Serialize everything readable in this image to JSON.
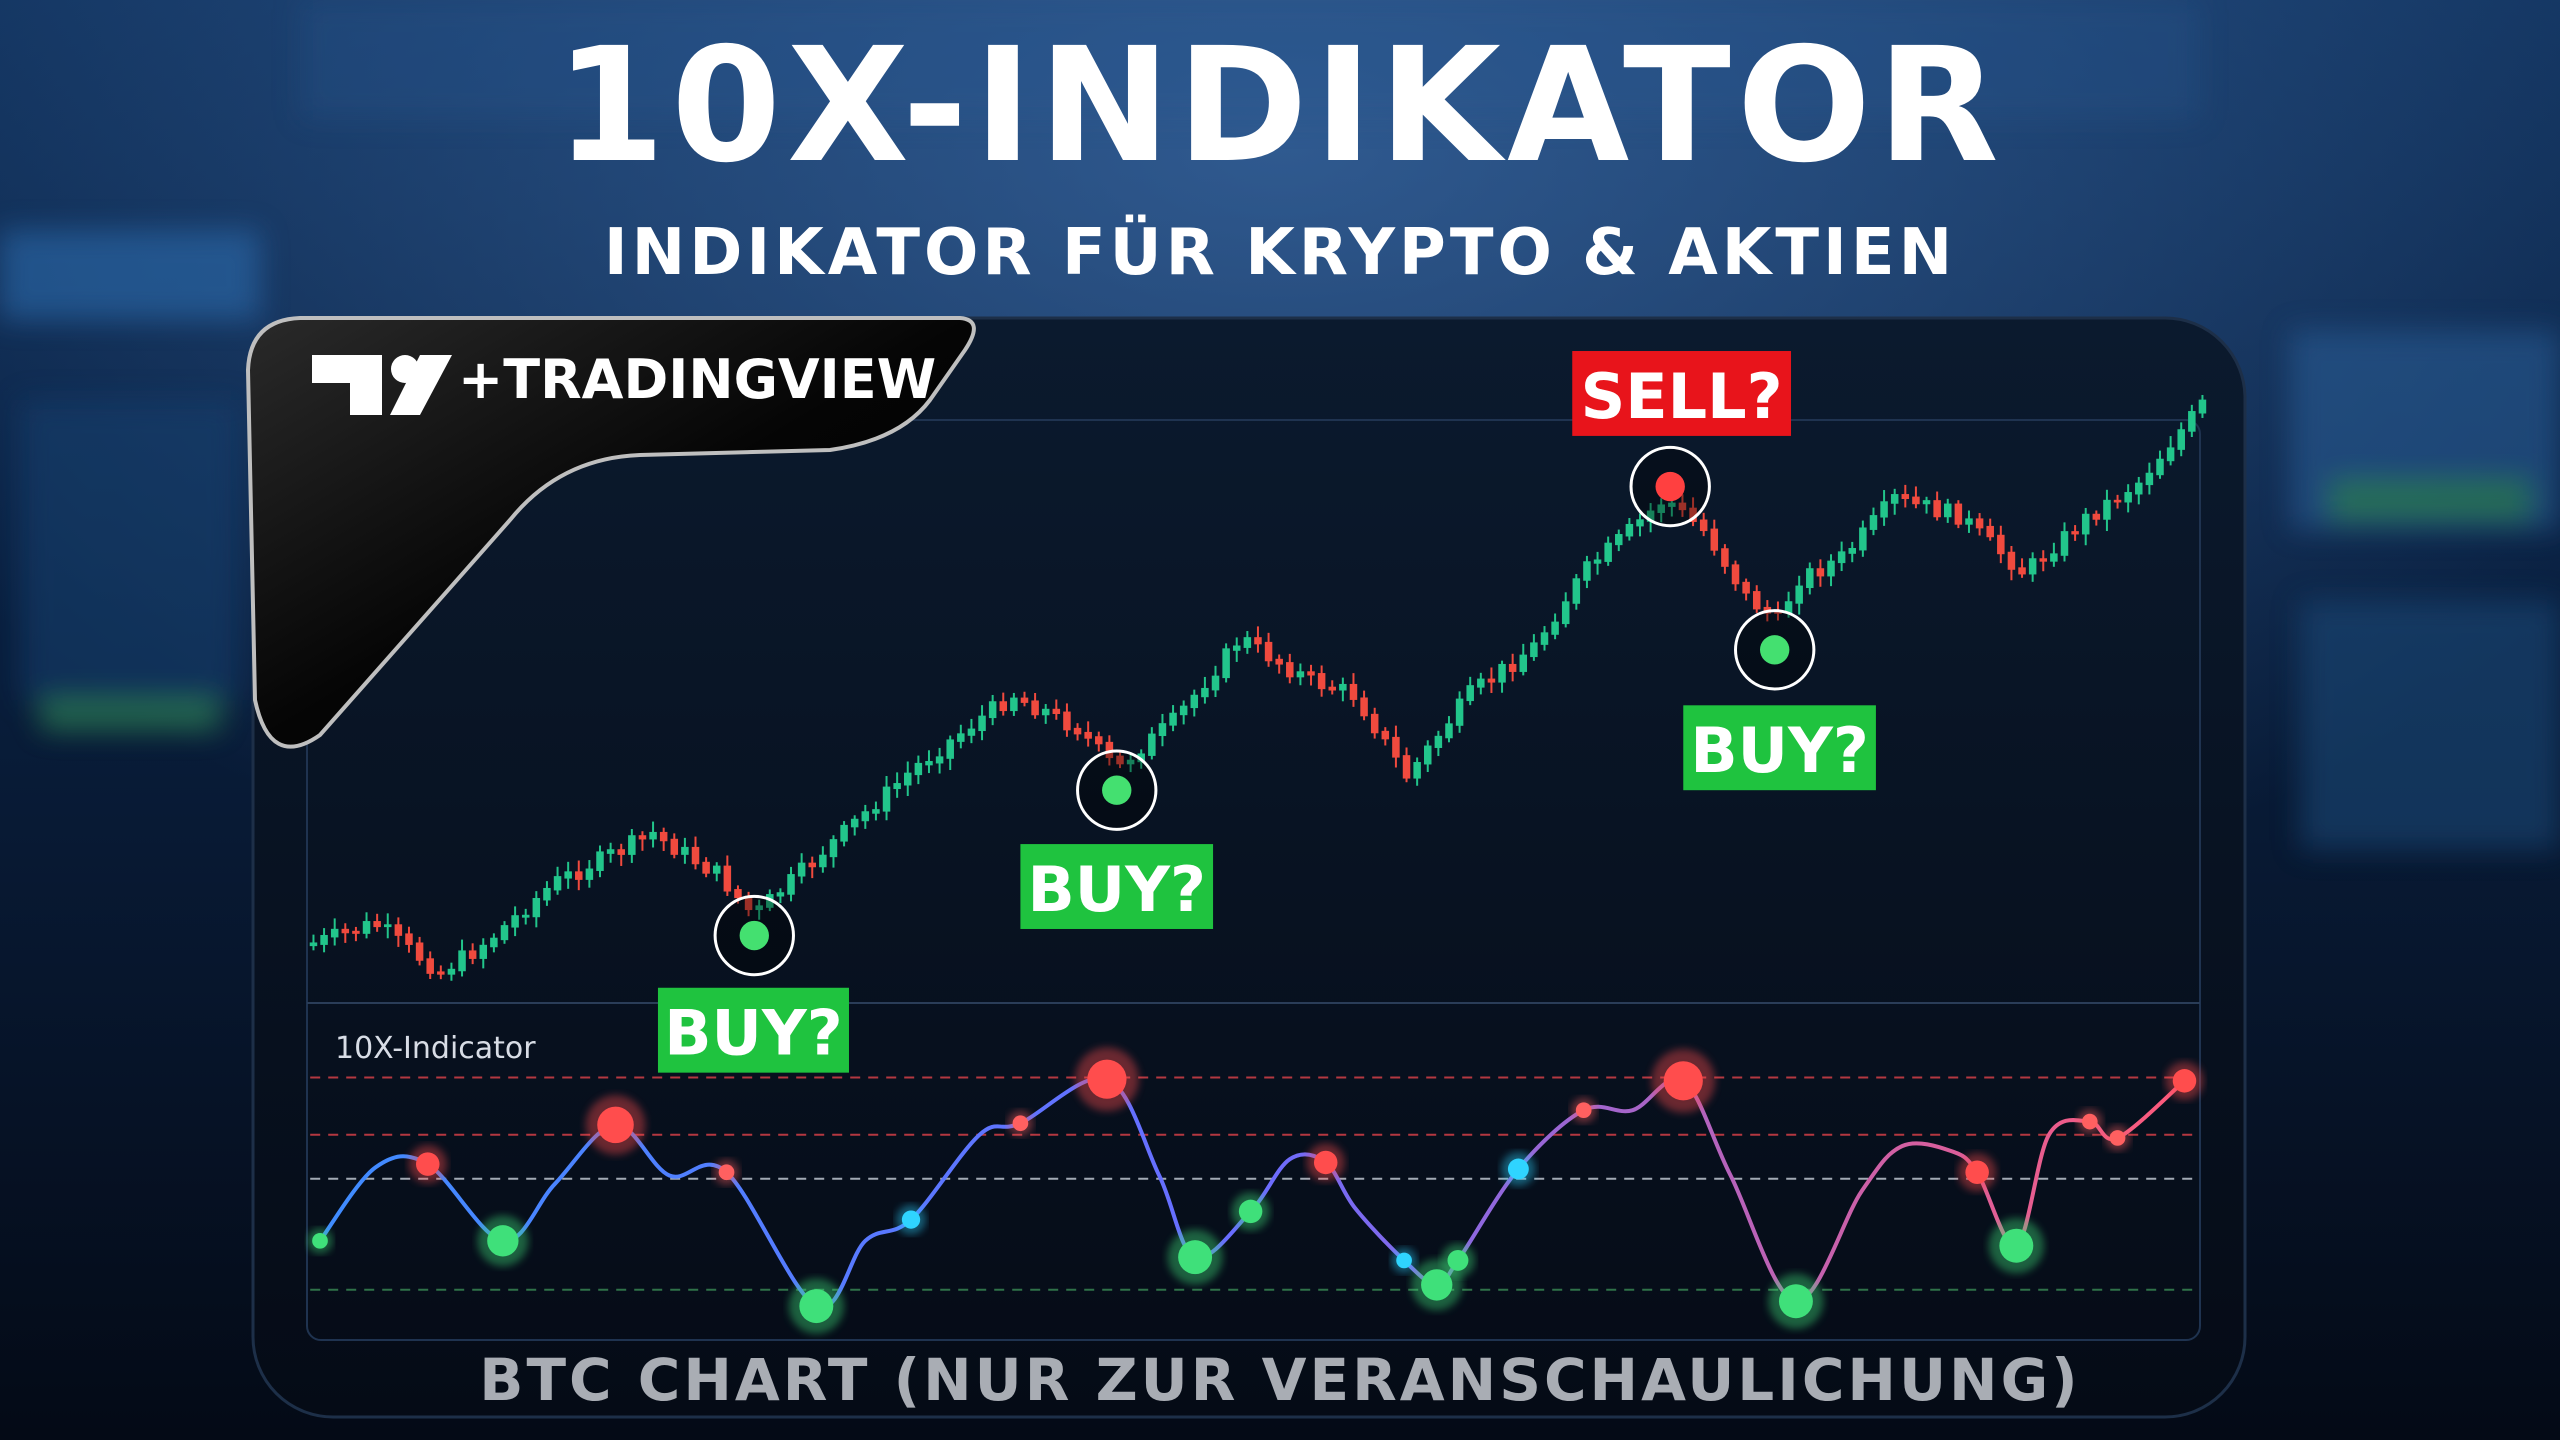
{
  "header": {
    "title": "10X-INDIKATOR",
    "subtitle": "INDIKATOR FÜR KRYPTO & AKTIEN"
  },
  "logo": {
    "text": "+TRADINGVIEW"
  },
  "signals": [
    {
      "label": "BUY?"
    },
    {
      "label": "BUY?"
    },
    {
      "label": "SELL?"
    },
    {
      "label": "BUY?"
    }
  ],
  "indicator": {
    "label": "10X-Indicator"
  },
  "footer": {
    "caption": "BTC CHART (NUR ZUR VERANSCHAULICHUNG)"
  }
}
